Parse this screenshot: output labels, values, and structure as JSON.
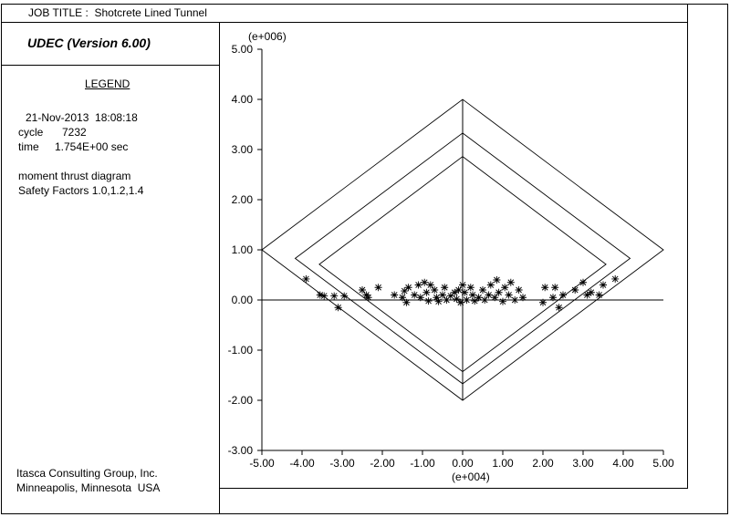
{
  "header": {
    "job_title": "JOB TITLE :  Shotcrete Lined Tunnel"
  },
  "program": {
    "name": "UDEC (Version 6.00)"
  },
  "legend": {
    "heading": "LEGEND",
    "date_line": "21-Nov-2013  18:08:18",
    "cycle_label": "cycle",
    "cycle_value": "7232",
    "time_label": "time",
    "time_value": "1.754E+00 sec",
    "plot_name": "moment thrust diagram",
    "safety_factors": "Safety Factors 1.0,1.2,1.4"
  },
  "footer": {
    "company": "Itasca Consulting Group, Inc.",
    "location": "Minneapolis, Minnesota  USA"
  },
  "chart_data": {
    "type": "scatter",
    "title": "",
    "y_multiplier_label": "(e+006)",
    "x_multiplier_label": "(e+004)",
    "xlim": [
      -5,
      5
    ],
    "ylim": [
      -3,
      5
    ],
    "x_ticks": [
      -5,
      -4,
      -3,
      -2,
      -1,
      0,
      1,
      2,
      3,
      4,
      5
    ],
    "y_ticks": [
      -3,
      -2,
      -1,
      0,
      1,
      2,
      3,
      4,
      5
    ],
    "x_tick_labels": [
      "-5.00",
      "-4.00",
      "-3.00",
      "-2.00",
      "-1.00",
      "0.00",
      "1.00",
      "2.00",
      "3.00",
      "4.00",
      "5.00"
    ],
    "y_tick_labels": [
      "-3.00",
      "-2.00",
      "-1.00",
      "0.00",
      "1.00",
      "2.00",
      "3.00",
      "4.00",
      "5.00"
    ],
    "marker": "*",
    "grid": false,
    "envelopes": [
      {
        "safety_factor": 1.0,
        "points": [
          [
            -5.0,
            1.0
          ],
          [
            0.0,
            4.0
          ],
          [
            5.0,
            1.0
          ],
          [
            0.0,
            -2.0
          ]
        ]
      },
      {
        "safety_factor": 1.2,
        "points": [
          [
            -4.17,
            0.83
          ],
          [
            0.0,
            3.33
          ],
          [
            4.17,
            0.83
          ],
          [
            0.0,
            -1.67
          ]
        ]
      },
      {
        "safety_factor": 1.4,
        "points": [
          [
            -3.57,
            0.71
          ],
          [
            0.0,
            2.86
          ],
          [
            3.57,
            0.71
          ],
          [
            0.0,
            -1.43
          ]
        ]
      }
    ],
    "points": [
      [
        -3.9,
        0.42
      ],
      [
        -3.55,
        0.1
      ],
      [
        -3.45,
        0.08
      ],
      [
        -3.2,
        0.08
      ],
      [
        -3.1,
        -0.15
      ],
      [
        -2.95,
        0.08
      ],
      [
        -2.5,
        0.2
      ],
      [
        -2.4,
        0.1
      ],
      [
        -2.35,
        0.05
      ],
      [
        -2.1,
        0.25
      ],
      [
        -1.7,
        0.1
      ],
      [
        -1.5,
        0.05
      ],
      [
        -1.45,
        0.18
      ],
      [
        -1.4,
        -0.05
      ],
      [
        -1.35,
        0.25
      ],
      [
        -1.2,
        0.1
      ],
      [
        -1.1,
        0.3
      ],
      [
        -1.05,
        0.05
      ],
      [
        -0.95,
        0.35
      ],
      [
        -0.9,
        0.15
      ],
      [
        -0.85,
        -0.02
      ],
      [
        -0.8,
        0.3
      ],
      [
        -0.7,
        0.2
      ],
      [
        -0.65,
        0.05
      ],
      [
        -0.6,
        -0.03
      ],
      [
        -0.5,
        0.1
      ],
      [
        -0.45,
        0.25
      ],
      [
        -0.4,
        0.0
      ],
      [
        -0.3,
        0.08
      ],
      [
        -0.2,
        0.15
      ],
      [
        -0.15,
        0.02
      ],
      [
        -0.1,
        0.2
      ],
      [
        -0.05,
        -0.05
      ],
      [
        0.0,
        0.3
      ],
      [
        0.05,
        0.15
      ],
      [
        0.1,
        0.0
      ],
      [
        0.2,
        0.25
      ],
      [
        0.25,
        0.1
      ],
      [
        0.3,
        -0.02
      ],
      [
        0.4,
        0.05
      ],
      [
        0.5,
        0.2
      ],
      [
        0.55,
        0.0
      ],
      [
        0.65,
        0.1
      ],
      [
        0.7,
        0.3
      ],
      [
        0.8,
        0.05
      ],
      [
        0.85,
        0.4
      ],
      [
        0.9,
        0.15
      ],
      [
        1.0,
        -0.03
      ],
      [
        1.05,
        0.25
      ],
      [
        1.15,
        0.1
      ],
      [
        1.2,
        0.35
      ],
      [
        1.3,
        0.0
      ],
      [
        1.4,
        0.2
      ],
      [
        1.5,
        0.05
      ],
      [
        2.0,
        -0.05
      ],
      [
        2.05,
        0.25
      ],
      [
        2.25,
        0.05
      ],
      [
        2.3,
        0.25
      ],
      [
        2.4,
        -0.15
      ],
      [
        2.5,
        0.1
      ],
      [
        2.8,
        0.2
      ],
      [
        3.0,
        0.35
      ],
      [
        3.1,
        0.1
      ],
      [
        3.2,
        0.15
      ],
      [
        3.4,
        0.1
      ],
      [
        3.5,
        0.3
      ],
      [
        3.8,
        0.42
      ]
    ]
  }
}
